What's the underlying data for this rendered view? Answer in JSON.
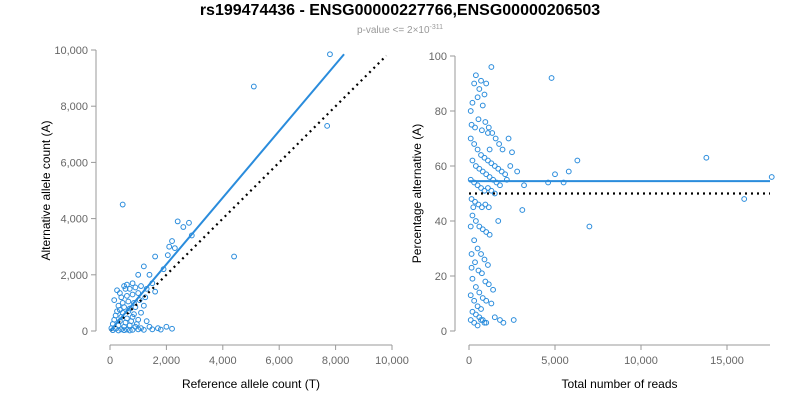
{
  "title": "rs199474436 - ENSG00000227766,ENSG00000206503",
  "subtitle": {
    "prefix": "p-value <= 2×10",
    "exponent": "-311"
  },
  "colors": {
    "points": "#2a8cdc",
    "fit": "#2a8cdc",
    "reference": "#000000",
    "axis": "#999999",
    "text": "#666666"
  },
  "chart_data": [
    {
      "type": "scatter",
      "id": "left",
      "xlabel": "Reference allele count (T)",
      "ylabel": "Alternative allele count (A)",
      "xlim": [
        0,
        10000
      ],
      "ylim": [
        0,
        10000
      ],
      "xticks": [
        0,
        2000,
        4000,
        6000,
        8000,
        10000
      ],
      "xtick_labels": [
        "0",
        "2,000",
        "4,000",
        "6,000",
        "8,000",
        "10,000"
      ],
      "yticks": [
        0,
        2000,
        4000,
        6000,
        8000,
        10000
      ],
      "ytick_labels": [
        "0",
        "2,000",
        "4,000",
        "6,000",
        "8,000",
        "10,000"
      ],
      "fit_line": {
        "x": [
          0,
          8300
        ],
        "y": [
          0,
          9850
        ]
      },
      "reference_line": {
        "x": [
          0,
          9800
        ],
        "y": [
          0,
          9800
        ]
      },
      "points": [
        [
          7800,
          9850
        ],
        [
          5100,
          8700
        ],
        [
          7700,
          7300
        ],
        [
          4400,
          2650
        ],
        [
          450,
          4500
        ],
        [
          2400,
          3900
        ],
        [
          2600,
          3700
        ],
        [
          2800,
          3850
        ],
        [
          2900,
          3400
        ],
        [
          2200,
          3200
        ],
        [
          2100,
          3000
        ],
        [
          2050,
          2700
        ],
        [
          2300,
          2950
        ],
        [
          1600,
          2650
        ],
        [
          1900,
          2200
        ],
        [
          1200,
          2300
        ],
        [
          1000,
          2000
        ],
        [
          1400,
          2000
        ],
        [
          800,
          1700
        ],
        [
          600,
          1650
        ],
        [
          500,
          1600
        ],
        [
          700,
          1500
        ],
        [
          900,
          1550
        ],
        [
          1100,
          1600
        ],
        [
          1300,
          1500
        ],
        [
          350,
          1350
        ],
        [
          400,
          1200
        ],
        [
          600,
          1250
        ],
        [
          800,
          1300
        ],
        [
          1000,
          1350
        ],
        [
          450,
          1000
        ],
        [
          650,
          1050
        ],
        [
          850,
          1000
        ],
        [
          1050,
          1100
        ],
        [
          300,
          900
        ],
        [
          500,
          850
        ],
        [
          700,
          800
        ],
        [
          900,
          850
        ],
        [
          1200,
          900
        ],
        [
          250,
          700
        ],
        [
          450,
          650
        ],
        [
          650,
          700
        ],
        [
          850,
          600
        ],
        [
          1100,
          650
        ],
        [
          200,
          550
        ],
        [
          400,
          500
        ],
        [
          600,
          450
        ],
        [
          800,
          500
        ],
        [
          1000,
          400
        ],
        [
          150,
          400
        ],
        [
          350,
          350
        ],
        [
          550,
          300
        ],
        [
          750,
          350
        ],
        [
          950,
          250
        ],
        [
          1300,
          350
        ],
        [
          100,
          250
        ],
        [
          300,
          200
        ],
        [
          500,
          150
        ],
        [
          700,
          200
        ],
        [
          900,
          150
        ],
        [
          1100,
          100
        ],
        [
          1400,
          150
        ],
        [
          1700,
          100
        ],
        [
          2000,
          150
        ],
        [
          50,
          100
        ],
        [
          200,
          80
        ],
        [
          400,
          60
        ],
        [
          600,
          50
        ],
        [
          800,
          40
        ],
        [
          1000,
          60
        ],
        [
          1200,
          40
        ],
        [
          1500,
          60
        ],
        [
          1800,
          50
        ],
        [
          2200,
          80
        ],
        [
          100,
          30
        ],
        [
          300,
          20
        ],
        [
          500,
          30
        ],
        [
          700,
          20
        ],
        [
          250,
          1450
        ],
        [
          550,
          1500
        ],
        [
          150,
          1100
        ],
        [
          350,
          750
        ],
        [
          1500,
          1700
        ],
        [
          1250,
          1200
        ],
        [
          1600,
          1400
        ]
      ]
    },
    {
      "type": "scatter",
      "id": "right",
      "xlabel": "Total number of reads",
      "ylabel": "Percentage alternative (A)",
      "xlim": [
        0,
        17500
      ],
      "ylim": [
        0,
        100
      ],
      "xticks": [
        0,
        5000,
        10000,
        15000
      ],
      "xtick_labels": [
        "0",
        "5,000",
        "10,000",
        "15,000"
      ],
      "yticks": [
        0,
        20,
        40,
        60,
        80,
        100
      ],
      "ytick_labels": [
        "0",
        "20",
        "40",
        "60",
        "80",
        "100"
      ],
      "fit_line": {
        "x": [
          0,
          17500
        ],
        "y": [
          54.5,
          54.5
        ]
      },
      "reference_line": {
        "x": [
          0,
          17500
        ],
        "y": [
          50,
          50
        ]
      },
      "points": [
        [
          17600,
          56
        ],
        [
          16000,
          48
        ],
        [
          13800,
          63
        ],
        [
          7000,
          38
        ],
        [
          6300,
          62
        ],
        [
          5800,
          58
        ],
        [
          5500,
          54
        ],
        [
          5000,
          57
        ],
        [
          4800,
          92
        ],
        [
          4600,
          54
        ],
        [
          3100,
          44
        ],
        [
          3200,
          53
        ],
        [
          2800,
          58
        ],
        [
          2500,
          65
        ],
        [
          2400,
          60
        ],
        [
          2300,
          70
        ],
        [
          2200,
          55
        ],
        [
          1300,
          96
        ],
        [
          1200,
          66
        ],
        [
          1100,
          72
        ],
        [
          1000,
          90
        ],
        [
          900,
          86
        ],
        [
          800,
          82
        ],
        [
          700,
          91
        ],
        [
          600,
          88
        ],
        [
          500,
          85
        ],
        [
          400,
          93
        ],
        [
          300,
          90
        ],
        [
          200,
          83
        ],
        [
          100,
          80
        ],
        [
          150,
          75
        ],
        [
          350,
          74
        ],
        [
          550,
          77
        ],
        [
          750,
          73
        ],
        [
          950,
          76
        ],
        [
          1150,
          74
        ],
        [
          1350,
          72
        ],
        [
          1550,
          70
        ],
        [
          1750,
          68
        ],
        [
          1950,
          66
        ],
        [
          100,
          70
        ],
        [
          300,
          68
        ],
        [
          500,
          66
        ],
        [
          700,
          64
        ],
        [
          900,
          63
        ],
        [
          1100,
          62
        ],
        [
          1300,
          61
        ],
        [
          1500,
          60
        ],
        [
          1700,
          59
        ],
        [
          1900,
          58
        ],
        [
          2100,
          57
        ],
        [
          200,
          62
        ],
        [
          400,
          60
        ],
        [
          600,
          59
        ],
        [
          800,
          58
        ],
        [
          1000,
          57
        ],
        [
          1200,
          56
        ],
        [
          1400,
          55
        ],
        [
          1600,
          54
        ],
        [
          1800,
          53
        ],
        [
          100,
          55
        ],
        [
          300,
          54
        ],
        [
          500,
          53
        ],
        [
          700,
          52
        ],
        [
          900,
          51
        ],
        [
          1100,
          52
        ],
        [
          1300,
          51
        ],
        [
          1500,
          50
        ],
        [
          150,
          48
        ],
        [
          350,
          47
        ],
        [
          550,
          46
        ],
        [
          750,
          45
        ],
        [
          950,
          46
        ],
        [
          1150,
          45
        ],
        [
          200,
          42
        ],
        [
          400,
          40
        ],
        [
          600,
          38
        ],
        [
          800,
          37
        ],
        [
          1000,
          36
        ],
        [
          1200,
          35
        ],
        [
          100,
          38
        ],
        [
          300,
          33
        ],
        [
          500,
          30
        ],
        [
          700,
          28
        ],
        [
          900,
          26
        ],
        [
          1100,
          24
        ],
        [
          150,
          28
        ],
        [
          350,
          25
        ],
        [
          550,
          22
        ],
        [
          750,
          21
        ],
        [
          950,
          18
        ],
        [
          1150,
          17
        ],
        [
          1400,
          15
        ],
        [
          200,
          19
        ],
        [
          400,
          16
        ],
        [
          600,
          14
        ],
        [
          800,
          12
        ],
        [
          1000,
          11
        ],
        [
          100,
          13
        ],
        [
          300,
          11
        ],
        [
          500,
          9
        ],
        [
          700,
          8
        ],
        [
          1300,
          10
        ],
        [
          200,
          7
        ],
        [
          400,
          6
        ],
        [
          600,
          5
        ],
        [
          800,
          4
        ],
        [
          1000,
          3
        ],
        [
          100,
          4
        ],
        [
          300,
          3
        ],
        [
          500,
          2
        ],
        [
          700,
          4
        ],
        [
          900,
          3
        ],
        [
          1500,
          5
        ],
        [
          1800,
          4
        ],
        [
          2000,
          3
        ],
        [
          2600,
          4
        ],
        [
          150,
          23
        ],
        [
          250,
          45
        ],
        [
          1700,
          40
        ]
      ]
    }
  ]
}
